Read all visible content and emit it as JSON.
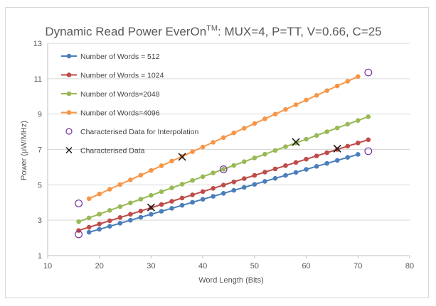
{
  "chart_data": {
    "type": "line",
    "title": "Dynamic  Read Power EverOn",
    "title_superscript": "TM",
    "title_suffix": ": MUX=4, P=TT, V=0.66, C=25",
    "xlabel": "Word Length  (Bits)",
    "ylabel": "Power (μW/MHz)",
    "xlim": [
      10,
      80
    ],
    "ylim": [
      1,
      13
    ],
    "x_ticks": [
      "10",
      "20",
      "30",
      "40",
      "50",
      "60",
      "70",
      "80"
    ],
    "y_ticks": [
      "1",
      "3",
      "5",
      "7",
      "9",
      "11",
      "13"
    ],
    "grid": "horizontal",
    "legend_position": "top-left",
    "x": [
      16,
      18,
      20,
      22,
      24,
      26,
      28,
      30,
      32,
      34,
      36,
      38,
      40,
      42,
      44,
      46,
      48,
      50,
      52,
      54,
      56,
      58,
      60,
      62,
      64,
      66,
      68,
      70,
      72
    ],
    "series": [
      {
        "name": "Number of Words = 512",
        "color": "#4a7ebb",
        "x_start": 18,
        "x_end": 70,
        "y_start": 2.32,
        "y_end": 6.72
      },
      {
        "name": "Number of Words = 1024",
        "color": "#be4b48",
        "x_start": 16,
        "x_end": 72,
        "y_start": 2.42,
        "y_end": 7.55
      },
      {
        "name": "Number of Words=2048",
        "color": "#98b954",
        "x_start": 16,
        "x_end": 72,
        "y_start": 2.92,
        "y_end": 8.85
      },
      {
        "name": "Number of Words=4096",
        "color": "#f79646",
        "x_start": 18,
        "x_end": 70,
        "y_start": 4.22,
        "y_end": 11.12
      }
    ],
    "interpolation_points": {
      "name": "Characterised Data for Interpolation",
      "color": "#7030a0",
      "points": [
        [
          16,
          2.2
        ],
        [
          16,
          3.95
        ],
        [
          44,
          5.88
        ],
        [
          72,
          6.9
        ],
        [
          72,
          11.35
        ]
      ]
    },
    "characterised_points": {
      "name": "Characterised Data",
      "color": "#1a1a1a",
      "points": [
        [
          30,
          3.72
        ],
        [
          36,
          6.58
        ],
        [
          58,
          7.42
        ],
        [
          66,
          7.05
        ]
      ]
    }
  }
}
